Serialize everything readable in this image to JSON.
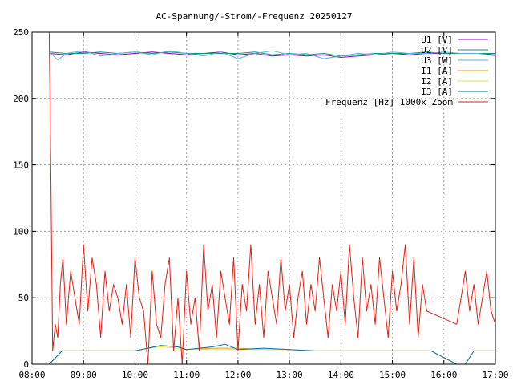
{
  "chart_data": {
    "type": "line",
    "title": "AC-Spannung/-Strom/-Frequenz 20250127",
    "xlabel": "",
    "ylabel": "",
    "xlim": [
      "08:00",
      "17:00"
    ],
    "ylim": [
      0,
      250
    ],
    "x_ticks": [
      "08:00",
      "09:00",
      "10:00",
      "11:00",
      "12:00",
      "13:00",
      "14:00",
      "15:00",
      "16:00",
      "17:00"
    ],
    "y_ticks": [
      0,
      50,
      100,
      150,
      200,
      250
    ],
    "grid": true,
    "legend_position": "top-right",
    "series": [
      {
        "name": "U1 [V]",
        "color": "#9400d3",
        "x": [
          "08:20",
          "08:40",
          "09:00",
          "09:20",
          "09:40",
          "10:00",
          "10:20",
          "10:40",
          "11:00",
          "11:20",
          "11:40",
          "12:00",
          "12:20",
          "12:40",
          "13:00",
          "13:20",
          "13:40",
          "14:00",
          "14:20",
          "14:40",
          "15:00",
          "15:20",
          "15:40",
          "16:00",
          "16:20",
          "16:40",
          "17:00"
        ],
        "values": [
          234,
          233,
          235,
          234,
          233,
          234,
          235,
          234,
          233,
          234,
          235,
          233,
          234,
          232,
          233,
          232,
          233,
          231,
          232,
          233,
          234,
          233,
          234,
          234,
          234,
          234,
          233
        ]
      },
      {
        "name": "U2 [V]",
        "color": "#009e73",
        "x": [
          "08:20",
          "08:40",
          "09:00",
          "09:20",
          "09:40",
          "10:00",
          "10:20",
          "10:40",
          "11:00",
          "11:20",
          "11:40",
          "12:00",
          "12:20",
          "12:40",
          "13:00",
          "13:20",
          "13:40",
          "14:00",
          "14:20",
          "14:40",
          "15:00",
          "15:20",
          "15:40",
          "16:00",
          "16:20",
          "16:40",
          "17:00"
        ],
        "values": [
          235,
          234,
          234,
          235,
          234,
          235,
          234,
          235,
          234,
          234,
          234,
          234,
          235,
          233,
          234,
          233,
          234,
          232,
          233,
          234,
          234,
          234,
          235,
          234,
          234,
          234,
          234
        ]
      },
      {
        "name": "U3 [W]",
        "color": "#56b4e9",
        "x": [
          "08:20",
          "08:30",
          "08:40",
          "09:00",
          "09:20",
          "09:40",
          "10:00",
          "10:20",
          "10:40",
          "11:00",
          "11:20",
          "11:40",
          "12:00",
          "12:20",
          "12:40",
          "13:00",
          "13:20",
          "13:40",
          "14:00",
          "14:20",
          "14:40",
          "15:00",
          "15:20",
          "15:40",
          "16:00",
          "16:20",
          "16:40",
          "17:00"
        ],
        "values": [
          235,
          229,
          234,
          236,
          232,
          234,
          235,
          233,
          236,
          234,
          232,
          235,
          230,
          234,
          236,
          233,
          234,
          230,
          232,
          234,
          233,
          235,
          234,
          234,
          235,
          234,
          234,
          232
        ]
      },
      {
        "name": "I1 [A]",
        "color": "#e69f00",
        "x": [
          "08:20",
          "08:35",
          "09:00",
          "09:30",
          "10:00",
          "10:15",
          "10:30",
          "10:50",
          "11:00",
          "11:30",
          "12:00",
          "12:30",
          "13:00",
          "13:30",
          "14:00",
          "14:30",
          "15:00",
          "15:30",
          "15:45",
          "16:15",
          "16:25",
          "16:35",
          "17:00"
        ],
        "values": [
          0,
          10,
          10,
          10,
          10,
          12,
          14,
          13,
          11,
          12,
          12,
          11,
          11,
          10,
          10,
          10,
          10,
          10,
          10,
          0,
          0,
          10,
          10
        ]
      },
      {
        "name": "I2 [A]",
        "color": "#f0e442",
        "x": [
          "08:20",
          "08:35",
          "09:00",
          "09:30",
          "10:00",
          "10:15",
          "10:30",
          "10:50",
          "11:00",
          "11:30",
          "12:00",
          "12:30",
          "13:00",
          "13:30",
          "14:00",
          "14:30",
          "15:00",
          "15:30",
          "15:45",
          "16:15",
          "16:25",
          "16:35",
          "17:00"
        ],
        "values": [
          0,
          10,
          10,
          10,
          10,
          12,
          13,
          12,
          11,
          11,
          11,
          11,
          11,
          10,
          10,
          10,
          10,
          10,
          10,
          0,
          0,
          10,
          10
        ]
      },
      {
        "name": "I3 [A]",
        "color": "#0072b2",
        "x": [
          "08:20",
          "08:35",
          "09:00",
          "09:30",
          "10:00",
          "10:15",
          "10:30",
          "10:50",
          "11:00",
          "11:30",
          "11:45",
          "12:00",
          "12:30",
          "13:00",
          "13:30",
          "14:00",
          "14:30",
          "15:00",
          "15:30",
          "15:45",
          "16:15",
          "16:25",
          "16:35",
          "17:00"
        ],
        "values": [
          0,
          10,
          10,
          10,
          10,
          12,
          14,
          13,
          11,
          13,
          15,
          11,
          12,
          11,
          10,
          10,
          10,
          10,
          10,
          10,
          0,
          0,
          10,
          10
        ]
      },
      {
        "name": "Frequenz [Hz] 1000x Zoom",
        "color": "#e51e10",
        "x": [
          "08:20",
          "08:22",
          "08:24",
          "08:27",
          "08:30",
          "08:33",
          "08:36",
          "08:40",
          "08:45",
          "08:50",
          "08:55",
          "09:00",
          "09:05",
          "09:10",
          "09:15",
          "09:20",
          "09:25",
          "09:30",
          "09:35",
          "09:40",
          "09:45",
          "09:50",
          "09:55",
          "10:00",
          "10:05",
          "10:10",
          "10:15",
          "10:20",
          "10:25",
          "10:30",
          "10:35",
          "10:40",
          "10:45",
          "10:50",
          "10:55",
          "11:00",
          "11:05",
          "11:10",
          "11:15",
          "11:20",
          "11:25",
          "11:30",
          "11:35",
          "11:40",
          "11:45",
          "11:50",
          "11:55",
          "12:00",
          "12:05",
          "12:10",
          "12:15",
          "12:20",
          "12:25",
          "12:30",
          "12:35",
          "12:40",
          "12:45",
          "12:50",
          "12:55",
          "13:00",
          "13:05",
          "13:10",
          "13:15",
          "13:20",
          "13:25",
          "13:30",
          "13:35",
          "13:40",
          "13:45",
          "13:50",
          "13:55",
          "14:00",
          "14:05",
          "14:10",
          "14:15",
          "14:20",
          "14:25",
          "14:30",
          "14:35",
          "14:40",
          "14:45",
          "14:50",
          "14:55",
          "15:00",
          "15:05",
          "15:10",
          "15:15",
          "15:20",
          "15:25",
          "15:30",
          "15:35",
          "15:40",
          "16:15",
          "16:20",
          "16:25",
          "16:30",
          "16:35",
          "16:40",
          "16:45",
          "16:50",
          "16:55",
          "17:00"
        ],
        "values": [
          250,
          140,
          10,
          30,
          20,
          60,
          80,
          30,
          70,
          50,
          30,
          90,
          40,
          80,
          60,
          20,
          70,
          40,
          60,
          50,
          30,
          60,
          20,
          80,
          50,
          40,
          0,
          70,
          30,
          20,
          60,
          80,
          10,
          50,
          0,
          70,
          30,
          50,
          10,
          90,
          40,
          60,
          20,
          70,
          50,
          30,
          80,
          10,
          60,
          40,
          90,
          30,
          60,
          20,
          70,
          50,
          30,
          80,
          40,
          60,
          20,
          50,
          70,
          30,
          60,
          40,
          80,
          50,
          20,
          60,
          40,
          70,
          30,
          90,
          50,
          20,
          80,
          40,
          60,
          30,
          80,
          50,
          20,
          70,
          40,
          60,
          90,
          30,
          80,
          20,
          60,
          40,
          30,
          50,
          70,
          40,
          60,
          30,
          50,
          70,
          40,
          30
        ]
      }
    ]
  }
}
